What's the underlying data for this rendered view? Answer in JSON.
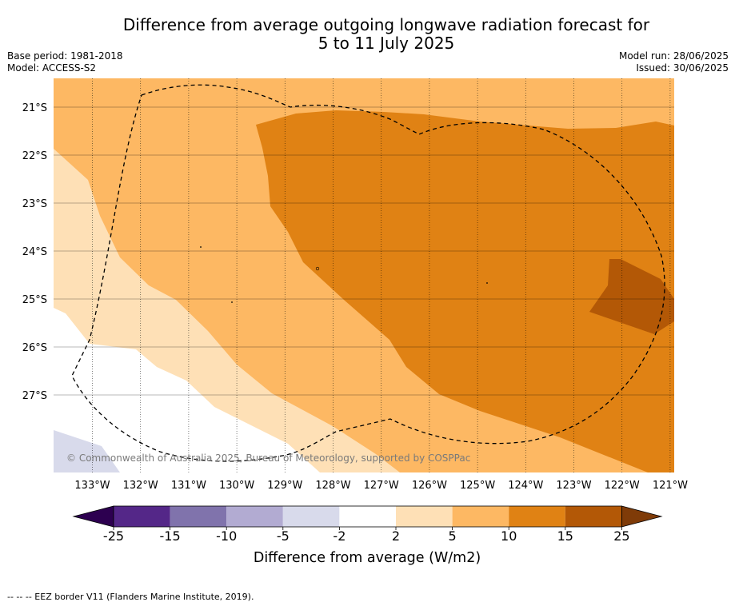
{
  "title_line1": "Difference from average outgoing longwave radiation forecast for",
  "title_line2": "5 to 11 July 2025",
  "base_period": "Base period: 1981-2018",
  "model": "Model: ACCESS-S2",
  "model_run": "Model run: 28/06/2025",
  "issued": "Issued: 30/06/2025",
  "copyright": "© Commonwealth of Australia 2025, Bureau of Meteorology, supported by COSPPac",
  "latitudes": [
    "21°S",
    "22°S",
    "23°S",
    "24°S",
    "25°S",
    "26°S",
    "27°S"
  ],
  "longitudes": [
    "133°W",
    "132°W",
    "131°W",
    "130°W",
    "129°W",
    "128°W",
    "127°W",
    "126°W",
    "125°W",
    "124°W",
    "123°W",
    "122°W",
    "121°W"
  ],
  "colorbar": {
    "label": "Difference from average (W/m2)",
    "ticks": [
      "-25",
      "-15",
      "-10",
      "-5",
      "-2",
      "2",
      "5",
      "10",
      "15",
      "25"
    ],
    "colors": {
      "below": "#2d0050",
      "-25_-15": "#542788",
      "-15_-10": "#8073ac",
      "-10_-5": "#b2abd2",
      "-5_-2": "#d8daeb",
      "-2_2": "#ffffff",
      "2_5": "#fee0b6",
      "5_10": "#fdb863",
      "10_15": "#e08214",
      "15_25": "#b35806",
      "above": "#7f3b08"
    }
  },
  "footnote": "--  --  -- EEZ border V11 (Flanders Marine Institute, 2019)."
}
